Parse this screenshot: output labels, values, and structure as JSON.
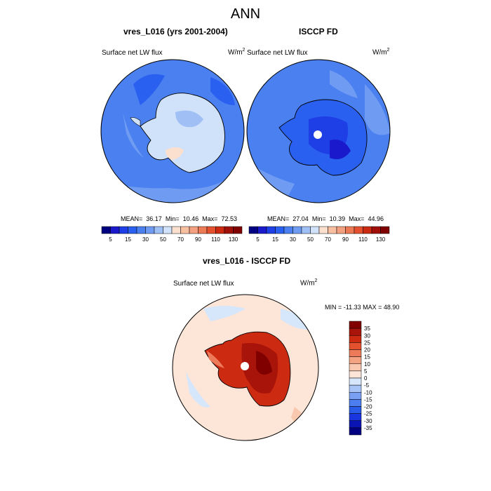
{
  "figure": {
    "title": "ANN",
    "colors": {
      "abs_levels": [
        "#000080",
        "#1a1acc",
        "#1e3ee6",
        "#2a60f0",
        "#4a80f0",
        "#6f9cf2",
        "#a0c0f5",
        "#d0e2fa",
        "#fbe0d0",
        "#f8c0a0",
        "#f2a080",
        "#ec7a55",
        "#e5502e",
        "#cc2a10",
        "#a01008",
        "#800000"
      ],
      "diff_levels": [
        "#000080",
        "#0a14b4",
        "#1a36e0",
        "#2a5ae8",
        "#4d7ef0",
        "#7aa0f3",
        "#a8c4f7",
        "#d6e6fb",
        "#fde6d8",
        "#f9c8ae",
        "#f3a282",
        "#ed7a58",
        "#e3512e",
        "#cc2b12",
        "#a8130a",
        "#800000"
      ]
    },
    "chart_data": [
      {
        "type": "heatmap",
        "title": "vres_L016 (yrs 2001-2004)",
        "field_label": "Surface net LW flux",
        "units_base": "W/m",
        "units_exp": "2",
        "stats": {
          "mean": 36.17,
          "min": 10.46,
          "max": 72.53
        },
        "stats_text": {
          "mean_label": "MEAN=",
          "mean": "36.17",
          "min_label": "Min=",
          "min": "10.46",
          "max_label": "Max=",
          "max": "72.53"
        },
        "colorbar_ticks": [
          "5",
          "15",
          "30",
          "50",
          "70",
          "90",
          "110",
          "130"
        ],
        "region": "Antarctica (south polar stereographic)"
      },
      {
        "type": "heatmap",
        "title": "ISCCP FD",
        "field_label": "Surface net LW flux",
        "units_base": "W/m",
        "units_exp": "2",
        "stats": {
          "mean": 27.04,
          "min": 10.39,
          "max": 44.96
        },
        "stats_text": {
          "mean_label": "MEAN=",
          "mean": "27.04",
          "min_label": "Min=",
          "min": "10.39",
          "max_label": "Max=",
          "max": "44.96"
        },
        "colorbar_ticks": [
          "5",
          "15",
          "30",
          "50",
          "70",
          "90",
          "110",
          "130"
        ],
        "region": "Antarctica (south polar stereographic)"
      },
      {
        "type": "heatmap",
        "title": "vres_L016 - ISCCP FD",
        "field_label": "Surface net LW flux",
        "units_base": "W/m",
        "units_exp": "2",
        "stats": {
          "min": -11.33,
          "max": 48.9
        },
        "stats_text": "MIN = -11.33 MAX =  48.90",
        "colorbar_ticks": [
          "35",
          "30",
          "25",
          "20",
          "15",
          "10",
          "5",
          "0",
          "-5",
          "-10",
          "-15",
          "-20",
          "-25",
          "-30",
          "-35"
        ],
        "region": "Antarctica (south polar stereographic)"
      }
    ]
  }
}
